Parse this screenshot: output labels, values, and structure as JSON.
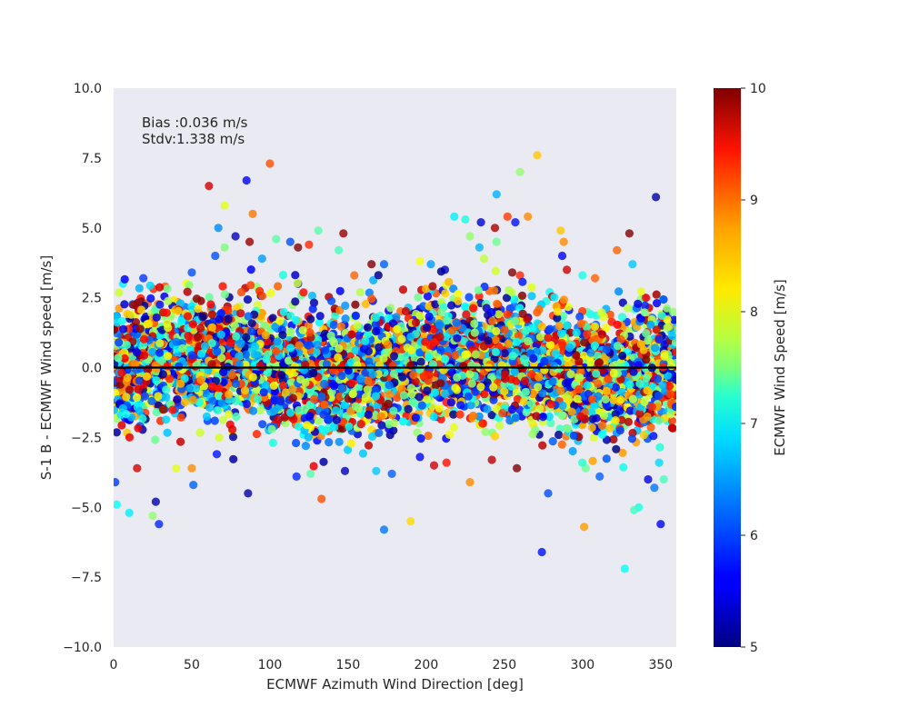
{
  "chart_data": {
    "type": "scatter",
    "title": "",
    "xlabel": "ECMWF Azimuth Wind Direction [deg]",
    "ylabel": "S-1 B - ECMWF Wind speed [m/s]",
    "xlim": [
      0,
      360
    ],
    "ylim": [
      -10,
      10
    ],
    "x_ticks": [
      0,
      50,
      100,
      150,
      200,
      250,
      300,
      350
    ],
    "y_ticks": [
      -10.0,
      -7.5,
      -5.0,
      -2.5,
      0.0,
      2.5,
      5.0,
      7.5,
      10.0
    ],
    "y_tick_labels": [
      "−10.0",
      "−7.5",
      "−5.0",
      "−2.5",
      "0.0",
      "2.5",
      "5.0",
      "7.5",
      "10.0"
    ],
    "grid": false,
    "background": "#eaeaf2",
    "zero_line": {
      "y": 0,
      "color": "#000000"
    },
    "annotations": {
      "bias": "Bias :0.036 m/s",
      "stdv": "Stdv:1.338 m/s"
    },
    "colorbar": {
      "label": "ECMWF Wind Speed [m/s]",
      "colormap": "jet",
      "range": [
        5,
        10
      ],
      "ticks": [
        5,
        6,
        7,
        8,
        9,
        10
      ]
    },
    "summary": {
      "bias": 0.036,
      "stdv": 1.338
    },
    "series": [
      {
        "color_by": "ECMWF Wind Speed [m/s]",
        "points": [
          [
            271,
            7.6,
            8.4
          ],
          [
            100,
            7.3,
            9.0
          ],
          [
            260,
            7.0,
            7.6
          ],
          [
            85,
            6.7,
            5.6
          ],
          [
            61,
            6.5,
            9.6
          ],
          [
            245,
            6.2,
            6.5
          ],
          [
            347,
            6.1,
            5.2
          ],
          [
            71,
            5.8,
            8.0
          ],
          [
            89,
            5.5,
            8.8
          ],
          [
            252,
            5.4,
            9.1
          ],
          [
            218,
            5.4,
            6.8
          ],
          [
            265,
            5.4,
            8.7
          ],
          [
            225,
            5.3,
            7.0
          ],
          [
            235,
            5.2,
            5.4
          ],
          [
            257,
            5.2,
            5.7
          ],
          [
            67,
            5.0,
            6.3
          ],
          [
            244,
            5.0,
            9.8
          ],
          [
            131,
            4.9,
            7.3
          ],
          [
            147,
            4.8,
            9.9
          ],
          [
            330,
            4.8,
            10.0
          ],
          [
            286,
            4.9,
            8.4
          ],
          [
            78,
            4.7,
            5.3
          ],
          [
            228,
            4.7,
            7.6
          ],
          [
            245,
            4.5,
            7.4
          ],
          [
            288,
            4.5,
            8.7
          ],
          [
            87,
            4.5,
            9.9
          ],
          [
            104,
            4.6,
            7.3
          ],
          [
            125,
            4.4,
            9.2
          ],
          [
            113,
            4.5,
            6.0
          ],
          [
            118,
            4.3,
            10.0
          ],
          [
            234,
            4.3,
            6.5
          ],
          [
            322,
            4.2,
            8.9
          ],
          [
            71,
            4.3,
            7.5
          ],
          [
            144,
            4.2,
            7.2
          ],
          [
            65,
            4.0,
            6.0
          ],
          [
            287,
            4.0,
            5.6
          ],
          [
            95,
            3.9,
            6.4
          ],
          [
            237,
            3.9,
            7.8
          ],
          [
            196,
            3.8,
            8.1
          ],
          [
            173,
            3.7,
            6.1
          ],
          [
            203,
            3.7,
            6.4
          ],
          [
            165,
            3.7,
            10.0
          ],
          [
            332,
            3.7,
            6.6
          ],
          [
            290,
            3.5,
            9.6
          ],
          [
            212,
            3.5,
            5.4
          ],
          [
            154,
            3.3,
            8.9
          ],
          [
            19,
            3.2,
            5.9
          ],
          [
            50,
            3.4,
            6.0
          ],
          [
            6,
            3.0,
            6.8
          ],
          [
            33,
            2.9,
            9.0
          ],
          [
            118,
            3.0,
            5.5
          ],
          [
            255,
            3.4,
            10.0
          ],
          [
            260,
            3.3,
            9.2
          ],
          [
            300,
            3.3,
            7.0
          ],
          [
            308,
            3.2,
            8.9
          ],
          [
            279,
            2.7,
            6.9
          ],
          [
            20,
            2.3,
            7.1
          ],
          [
            15,
            -3.6,
            9.6
          ],
          [
            25,
            -5.3,
            7.6
          ],
          [
            29,
            -5.6,
            5.8
          ],
          [
            27,
            -4.8,
            5.2
          ],
          [
            10,
            -5.2,
            6.8
          ],
          [
            2,
            -4.9,
            6.9
          ],
          [
            1,
            -4.1,
            5.9
          ],
          [
            51,
            -4.2,
            6.1
          ],
          [
            86,
            -4.5,
            5.2
          ],
          [
            133,
            -4.7,
            9.0
          ],
          [
            117,
            -3.9,
            5.8
          ],
          [
            126,
            -3.8,
            7.3
          ],
          [
            173,
            -5.8,
            6.2
          ],
          [
            190,
            -5.5,
            8.3
          ],
          [
            228,
            -4.1,
            8.7
          ],
          [
            278,
            -4.5,
            6.0
          ],
          [
            274,
            -6.6,
            5.7
          ],
          [
            301,
            -5.7,
            8.6
          ],
          [
            327,
            -7.2,
            6.9
          ],
          [
            350,
            -5.6,
            5.6
          ],
          [
            336,
            -5.0,
            7.0
          ],
          [
            333,
            -5.1,
            7.2
          ],
          [
            346,
            -4.3,
            6.2
          ],
          [
            311,
            -3.9,
            6.1
          ],
          [
            302,
            -3.6,
            7.4
          ],
          [
            258,
            -3.6,
            10.0
          ],
          [
            242,
            -3.3,
            9.7
          ],
          [
            50,
            -3.6,
            8.7
          ],
          [
            40,
            -3.6,
            8.0
          ],
          [
            66,
            -3.1,
            5.7
          ],
          [
            148,
            -3.7,
            5.3
          ],
          [
            168,
            -3.7,
            6.6
          ],
          [
            178,
            -3.8,
            6.1
          ],
          [
            196,
            -3.2,
            5.6
          ],
          [
            205,
            -3.5,
            9.6
          ],
          [
            213,
            -3.4,
            9.3
          ],
          [
            349,
            -3.4,
            6.7
          ],
          [
            352,
            -4.0,
            7.2
          ],
          [
            342,
            -4.0,
            5.5
          ]
        ]
      }
    ]
  }
}
